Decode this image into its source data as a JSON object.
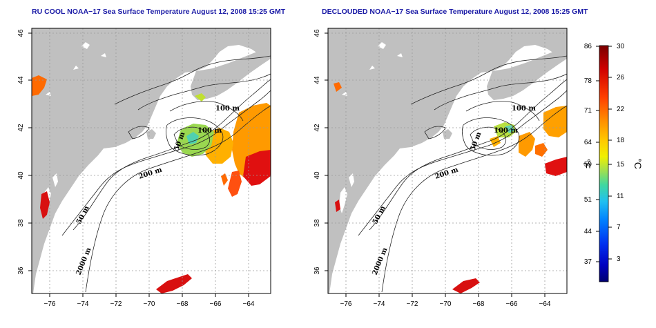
{
  "titles": {
    "left": "RU COOL NOAA−17 Sea Surface Temperature August 12, 2008 15:25 GMT",
    "right": "DECLOUDED NOAA−17 Sea Surface Temperature August 12, 2008 15:25 GMT"
  },
  "axes": {
    "lon_ticks": [
      "−76",
      "−74",
      "−72",
      "−70",
      "−68",
      "−66",
      "−64"
    ],
    "lat_ticks": [
      "36",
      "38",
      "40",
      "42",
      "44",
      "46"
    ]
  },
  "contour_labels": [
    "100 m",
    "100 m",
    "50 m",
    "200 m",
    "50 m",
    "2000 m"
  ],
  "colorbar": {
    "fahrenheit_labels": [
      "86",
      "78",
      "71",
      "64",
      "59",
      "51",
      "44",
      "37"
    ],
    "celsius_labels": [
      "30",
      "26",
      "22",
      "18",
      "15",
      "11",
      "7",
      "3"
    ],
    "fahrenheit_unit": "°F",
    "celsius_unit": "°C",
    "colors": [
      "#8b0000",
      "#d40000",
      "#ff3a00",
      "#ff8a00",
      "#ffc800",
      "#f0f000",
      "#a8e048",
      "#50d890",
      "#20c8e0",
      "#1090ff",
      "#0040ff",
      "#0000d0",
      "#000080"
    ]
  },
  "colors": {
    "land": "#c0c0c0",
    "title": "#1a1aa6",
    "grid": "#9a9a9a"
  }
}
